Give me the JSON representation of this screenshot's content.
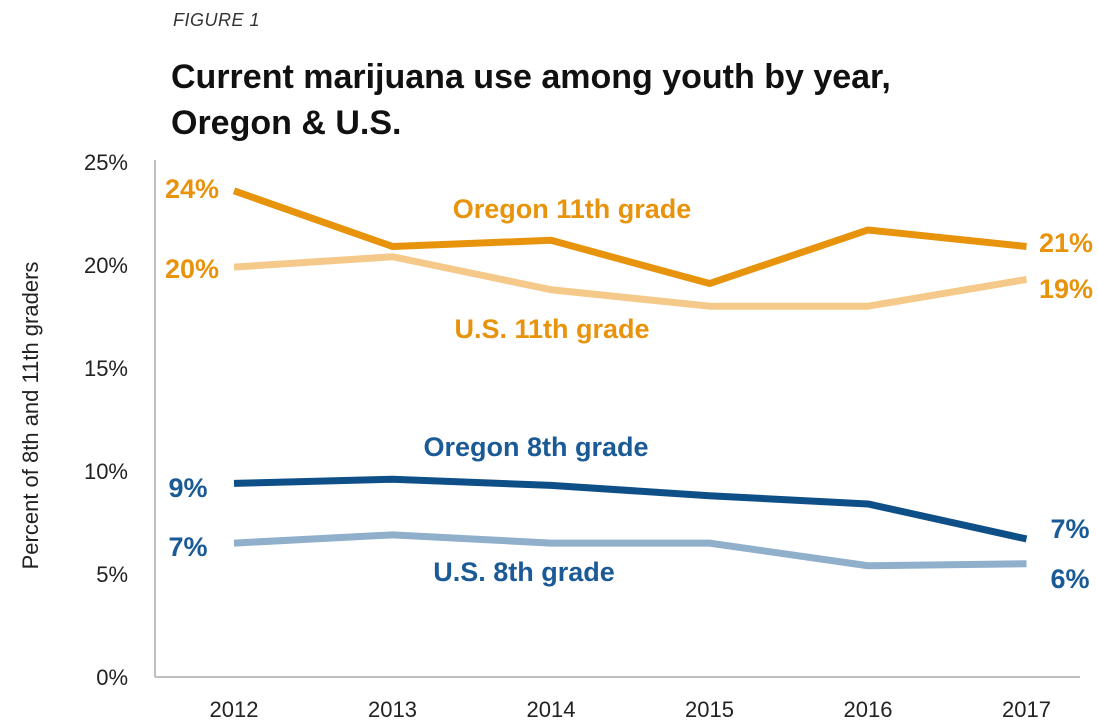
{
  "figure_label": "FIGURE 1",
  "title_line1": "Current marijuana use among youth by year,",
  "title_line2": "Oregon & U.S.",
  "chart_data": {
    "type": "line",
    "title": "Current marijuana use among youth by year, Oregon & U.S.",
    "ylabel": "Percent of 8th and 11th graders",
    "xlabel": "",
    "x": [
      "2012",
      "2013",
      "2014",
      "2015",
      "2016",
      "2017"
    ],
    "y_ticks": [
      "0%",
      "5%",
      "10%",
      "15%",
      "20%",
      "25%"
    ],
    "ylim": [
      0,
      25
    ],
    "grid": false,
    "series": [
      {
        "name": "Oregon 11th grade",
        "color": "#E8930C",
        "values": [
          23.6,
          20.9,
          21.2,
          19.1,
          21.7,
          20.9
        ],
        "start_label": "24%",
        "end_label": "21%"
      },
      {
        "name": "U.S. 11th grade",
        "color": "#F5C98A",
        "label_color": "#E8930C",
        "values": [
          19.9,
          20.4,
          18.8,
          18.0,
          18.0,
          19.3
        ],
        "start_label": "20%",
        "end_label": "19%"
      },
      {
        "name": "Oregon 8th grade",
        "color": "#0E4F87",
        "label_color": "#1A5A96",
        "values": [
          9.4,
          9.6,
          9.3,
          8.8,
          8.4,
          6.7
        ],
        "start_label": "9%",
        "end_label": "7%"
      },
      {
        "name": "U.S. 8th grade",
        "color": "#8FAFCB",
        "label_color": "#1A5A96",
        "values": [
          6.5,
          6.9,
          6.5,
          6.5,
          5.4,
          5.5
        ],
        "start_label": "7%",
        "end_label": "6%"
      }
    ]
  }
}
